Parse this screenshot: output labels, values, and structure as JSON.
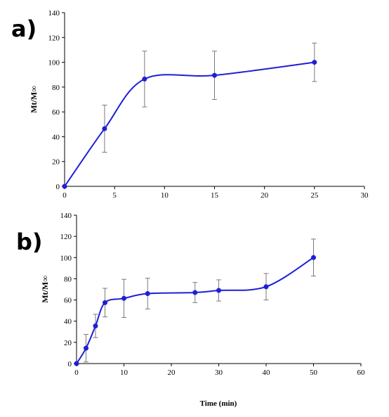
{
  "chart_data": [
    {
      "type": "line",
      "panel_label": "a)",
      "ylabel": "Mt/M∞",
      "xlabel": "",
      "xlim": [
        0,
        30
      ],
      "ylim": [
        0,
        140
      ],
      "xticks": [
        0,
        5,
        10,
        15,
        20,
        25,
        30
      ],
      "yticks": [
        0,
        20,
        40,
        60,
        80,
        100,
        120,
        140
      ],
      "x": [
        0,
        4,
        8,
        15,
        25
      ],
      "y": [
        0,
        46.5,
        86.5,
        89.5,
        100
      ],
      "error": [
        0,
        19,
        22.5,
        19.5,
        15.5
      ],
      "color": "#1f1fd6"
    },
    {
      "type": "line",
      "panel_label": "b)",
      "ylabel": "Mt/M∞",
      "xlabel": "Time (min)",
      "xlim": [
        0,
        60
      ],
      "ylim": [
        0,
        140
      ],
      "xticks": [
        0,
        10,
        20,
        30,
        40,
        50,
        60
      ],
      "yticks": [
        0,
        20,
        40,
        60,
        80,
        100,
        120,
        140
      ],
      "x": [
        0,
        2,
        4,
        6,
        10,
        15,
        25,
        30,
        40,
        50
      ],
      "y": [
        0,
        14.5,
        35.5,
        57.5,
        61.5,
        66,
        67,
        69,
        72.5,
        100
      ],
      "error": [
        0,
        13,
        11,
        13.5,
        18,
        14.5,
        9.5,
        10,
        12.5,
        17.5
      ],
      "color": "#1f1fd6"
    }
  ]
}
